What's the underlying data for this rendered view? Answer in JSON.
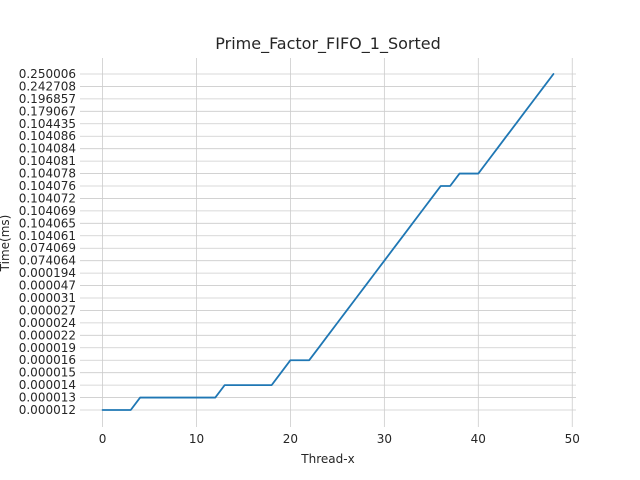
{
  "chart_data": {
    "type": "line",
    "title": "Prime_Factor_FIFO_1_Sorted",
    "xlabel": "Thread-x",
    "ylabel": "Time(ms)",
    "xlim": [
      -2.4,
      50.4
    ],
    "x_ticks": [
      0,
      10,
      20,
      30,
      40,
      50
    ],
    "grid": true,
    "y_scale": "categorical",
    "y_categories": [
      "0.000012",
      "0.000013",
      "0.000014",
      "0.000015",
      "0.000016",
      "0.000019",
      "0.000022",
      "0.000024",
      "0.000027",
      "0.000031",
      "0.000047",
      "0.000194",
      "0.074064",
      "0.074069",
      "0.104061",
      "0.104065",
      "0.104069",
      "0.104072",
      "0.104076",
      "0.104078",
      "0.104081",
      "0.104084",
      "0.104086",
      "0.104435",
      "0.179067",
      "0.196857",
      "0.242708",
      "0.250006"
    ],
    "series": [
      {
        "color": "#1f77b4",
        "points": [
          [
            0,
            "0.000012"
          ],
          [
            3,
            "0.000012"
          ],
          [
            4,
            "0.000013"
          ],
          [
            12,
            "0.000013"
          ],
          [
            13,
            "0.000014"
          ],
          [
            18,
            "0.000014"
          ],
          [
            20,
            "0.000016"
          ],
          [
            22,
            "0.000016"
          ],
          [
            23,
            "0.000019"
          ],
          [
            24,
            "0.000022"
          ],
          [
            25,
            "0.000024"
          ],
          [
            26,
            "0.000027"
          ],
          [
            27,
            "0.000031"
          ],
          [
            28,
            "0.000047"
          ],
          [
            29,
            "0.000194"
          ],
          [
            30,
            "0.074064"
          ],
          [
            31,
            "0.074069"
          ],
          [
            32,
            "0.104061"
          ],
          [
            33,
            "0.104065"
          ],
          [
            34,
            "0.104069"
          ],
          [
            35,
            "0.104072"
          ],
          [
            36,
            "0.104076"
          ],
          [
            37,
            "0.104076"
          ],
          [
            38,
            "0.104078"
          ],
          [
            40,
            "0.104078"
          ],
          [
            41,
            "0.104081"
          ],
          [
            42,
            "0.104084"
          ],
          [
            43,
            "0.104086"
          ],
          [
            44,
            "0.104435"
          ],
          [
            45,
            "0.179067"
          ],
          [
            46,
            "0.196857"
          ],
          [
            47,
            "0.242708"
          ],
          [
            48,
            "0.250006"
          ]
        ]
      }
    ]
  }
}
